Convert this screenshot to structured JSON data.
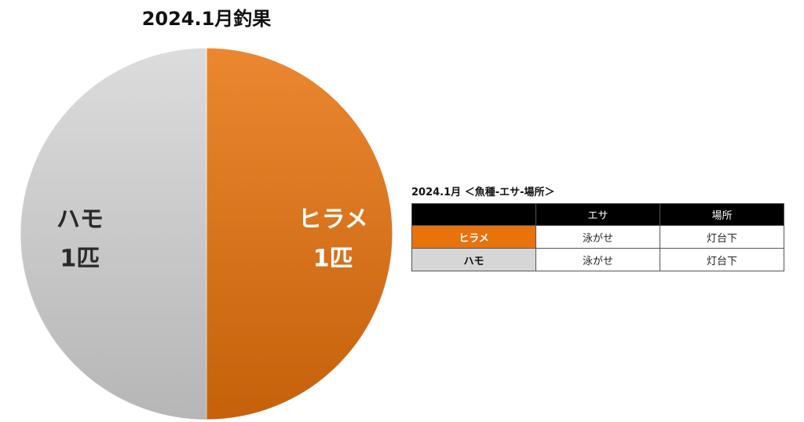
{
  "chart_data": {
    "type": "pie",
    "title": "2024.1月釣果",
    "categories": [
      "ヒラメ",
      "ハモ"
    ],
    "values": [
      1,
      1
    ],
    "value_labels": [
      "1匹",
      "1匹"
    ],
    "colors": [
      "#e8720c",
      "#d6d6d6"
    ]
  },
  "table": {
    "title": "2024.1月 ＜魚種-エサ-場所＞",
    "header": [
      "エサ",
      "場所"
    ],
    "rows": [
      [
        "ヒラメ",
        "泳がせ",
        "灯台下"
      ],
      [
        "ハモ",
        "泳がせ",
        "灯台下"
      ]
    ]
  }
}
